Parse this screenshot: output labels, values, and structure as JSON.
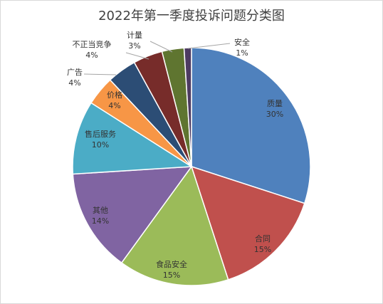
{
  "chart_data": {
    "type": "pie",
    "title": "2022年第一季度投诉问题分类图",
    "categories": [
      "质量",
      "合同",
      "食品安全",
      "其他",
      "售后服务",
      "价格",
      "广告",
      "不正当竞争",
      "计量",
      "安全"
    ],
    "values": [
      30,
      15,
      15,
      14,
      10,
      4,
      4,
      4,
      3,
      1
    ],
    "labels": [
      "30%",
      "15%",
      "15%",
      "14%",
      "10%",
      "4%",
      "4%",
      "4%",
      "3%",
      "1%"
    ],
    "colors": [
      "#4f81bd",
      "#c0504d",
      "#9bbb59",
      "#8064a2",
      "#4bacc6",
      "#f79646",
      "#2c4d75",
      "#772c2a",
      "#5f7530",
      "#4d3b62"
    ],
    "legend": "none"
  }
}
